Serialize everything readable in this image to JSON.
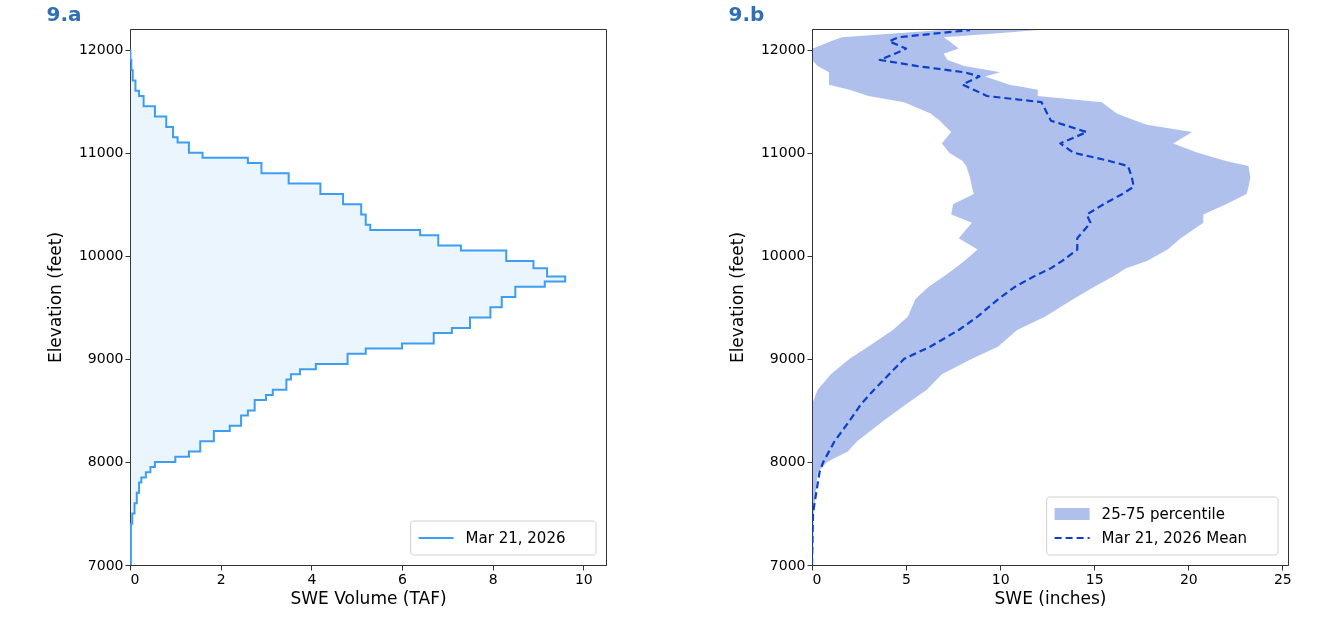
{
  "chart_data": [
    {
      "type": "step",
      "title": "9.a",
      "xlabel": "SWE Volume (TAF)",
      "ylabel": "Elevation (feet)",
      "orientation": "horizontal",
      "x": [
        7000,
        7400,
        7500,
        7600,
        7700,
        7800,
        7850,
        7900,
        7950,
        8000,
        8050,
        8100,
        8200,
        8300,
        8350,
        8450,
        8500,
        8600,
        8650,
        8700,
        8800,
        8850,
        8900,
        8950,
        9050,
        9100,
        9150,
        9250,
        9300,
        9400,
        9500,
        9600,
        9700,
        9750,
        9800,
        9880,
        9950,
        10050,
        10100,
        10200,
        10250,
        10300,
        10400,
        10500,
        10600,
        10700,
        10800,
        10900,
        10950,
        11000,
        11100,
        11150,
        11250,
        11350,
        11450,
        11550,
        11600,
        11700,
        11800,
        11900,
        12000
      ],
      "series": [
        {
          "name": "Mar 21, 2026",
          "color": "#3d9df3",
          "values": [
            0.02,
            0.05,
            0.1,
            0.15,
            0.2,
            0.25,
            0.35,
            0.45,
            0.55,
            1.0,
            1.3,
            1.55,
            1.85,
            2.2,
            2.45,
            2.6,
            2.75,
            3.0,
            3.15,
            3.45,
            3.55,
            3.75,
            4.1,
            4.8,
            5.2,
            6.0,
            6.7,
            7.1,
            7.5,
            7.95,
            8.2,
            8.5,
            9.15,
            9.6,
            9.2,
            8.9,
            8.3,
            7.3,
            6.8,
            6.4,
            5.3,
            5.2,
            5.1,
            4.7,
            4.2,
            3.5,
            2.9,
            2.6,
            1.6,
            1.3,
            1.05,
            0.95,
            0.8,
            0.55,
            0.3,
            0.2,
            0.12,
            0.06,
            0.03,
            0.01,
            0.01
          ]
        }
      ],
      "xlim": [
        0,
        10.5
      ],
      "xticks": [
        0,
        2,
        4,
        6,
        8,
        10
      ],
      "ylim": [
        7000,
        12200
      ],
      "yticks": [
        7000,
        8000,
        9000,
        10000,
        11000,
        12000
      ],
      "legend": "bottom right"
    },
    {
      "type": "line",
      "title": "9.b",
      "xlabel": "SWE (inches)",
      "ylabel": "Elevation (feet)",
      "orientation": "horizontal",
      "series": [
        {
          "name": "Mar 21, 2026 Mean",
          "type": "line",
          "color": "#0b3fc9",
          "line_style": "dashed",
          "x": [
            7000,
            7500,
            7900,
            8000,
            8100,
            8200,
            8400,
            8560,
            8700,
            8850,
            9000,
            9120,
            9280,
            9410,
            9580,
            9700,
            9800,
            9880,
            9950,
            10060,
            10170,
            10320,
            10400,
            10500,
            10600,
            10670,
            10760,
            10870,
            10920,
            11000,
            11090,
            11200,
            11270,
            11310,
            11380,
            11490,
            11550,
            11610,
            11660,
            11740,
            11780,
            11840,
            11900,
            11960,
            12010,
            12080,
            12120,
            12190
          ],
          "values": [
            0,
            0.05,
            0.4,
            0.6,
            0.9,
            1.2,
            2.0,
            2.6,
            3.3,
            4.1,
            4.9,
            6.3,
            7.8,
            8.8,
            9.9,
            10.8,
            11.8,
            12.7,
            13.3,
            14.1,
            14.1,
            14.8,
            14.6,
            15.5,
            16.5,
            17.1,
            17.0,
            16.8,
            15.8,
            13.9,
            13.2,
            14.6,
            13.4,
            12.7,
            12.5,
            12.2,
            9.3,
            8.6,
            8.0,
            8.9,
            8.1,
            5.6,
            3.6,
            4.4,
            5.0,
            4.1,
            4.6,
            8.4
          ],
          "lower": [
            0,
            0,
            0,
            0,
            0,
            0,
            0,
            0,
            0.3,
            1.0,
            2.0,
            3.0,
            4.3,
            5.1,
            5.5,
            6.2,
            7.0,
            7.6,
            8.1,
            8.8,
            7.8,
            8.5,
            7.4,
            7.5,
            8.6,
            8.5,
            8.4,
            8.2,
            8.0,
            7.3,
            6.9,
            7.4,
            7.0,
            6.8,
            6.3,
            4.9,
            3.0,
            2.0,
            0.9,
            0.9,
            0.9,
            0.3,
            0,
            0,
            0.05,
            1.0,
            1.6,
            6.9
          ],
          "upper": [
            0.05,
            0.1,
            0.3,
            0.8,
            1.9,
            2.4,
            3.8,
            5.0,
            6.1,
            6.9,
            8.5,
            9.9,
            10.9,
            12.4,
            13.9,
            15.0,
            16.0,
            16.7,
            17.8,
            18.9,
            19.6,
            20.8,
            20.8,
            22.0,
            23.1,
            23.2,
            23.3,
            23.2,
            22.0,
            20.5,
            19.2,
            20.2,
            17.8,
            17.2,
            16.2,
            15.4,
            12.0,
            12.0,
            10.5,
            9.2,
            10.0,
            8.1,
            7.2,
            7.0,
            7.8,
            7.3,
            7.0,
            12.1
          ]
        }
      ],
      "annotations": [
        "25-75 percentile"
      ],
      "xlim": [
        0,
        25.3
      ],
      "xticks": [
        0,
        5,
        10,
        15,
        20,
        25
      ],
      "ylim": [
        7000,
        12200
      ],
      "yticks": [
        7000,
        8000,
        9000,
        10000,
        11000,
        12000
      ],
      "legend": "bottom right"
    }
  ]
}
